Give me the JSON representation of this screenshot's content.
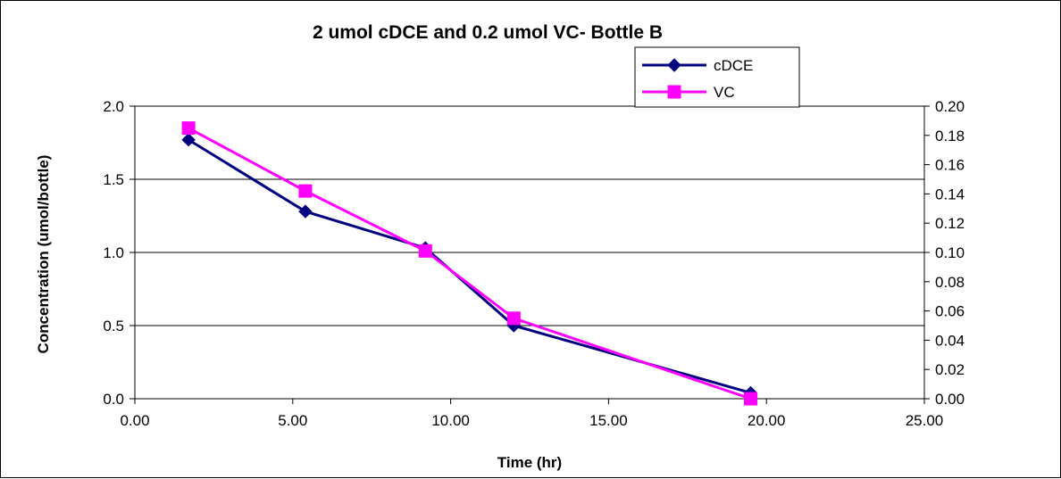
{
  "chart_data": {
    "type": "line",
    "title": "2 umol cDCE  and 0.2 umol VC- Bottle B",
    "xlabel": "Time (hr)",
    "ylabel": "Concentration (umol/bottle)",
    "xlim": [
      0,
      25
    ],
    "ylim": [
      0,
      2
    ],
    "y2lim": [
      0,
      0.2
    ],
    "x_ticks": [
      "0.00",
      "5.00",
      "10.00",
      "15.00",
      "20.00",
      "25.00"
    ],
    "y_ticks": [
      "0.0",
      "0.5",
      "1.0",
      "1.5",
      "2.0"
    ],
    "y2_ticks": [
      "0.00",
      "0.02",
      "0.04",
      "0.06",
      "0.08",
      "0.10",
      "0.12",
      "0.14",
      "0.16",
      "0.18",
      "0.20"
    ],
    "grid": "horizontal",
    "legend_position": "top-right",
    "series": [
      {
        "name": "cDCE",
        "axis": "left",
        "color": "#000080",
        "marker": "diamond",
        "x": [
          1.7,
          5.4,
          9.2,
          12.0,
          19.5
        ],
        "y": [
          1.77,
          1.28,
          1.03,
          0.5,
          0.04
        ]
      },
      {
        "name": "VC",
        "axis": "right",
        "color": "#ff00ff",
        "marker": "square",
        "x": [
          1.7,
          5.4,
          9.2,
          12.0,
          19.5
        ],
        "y": [
          0.185,
          0.142,
          0.101,
          0.055,
          0.0
        ]
      }
    ]
  }
}
